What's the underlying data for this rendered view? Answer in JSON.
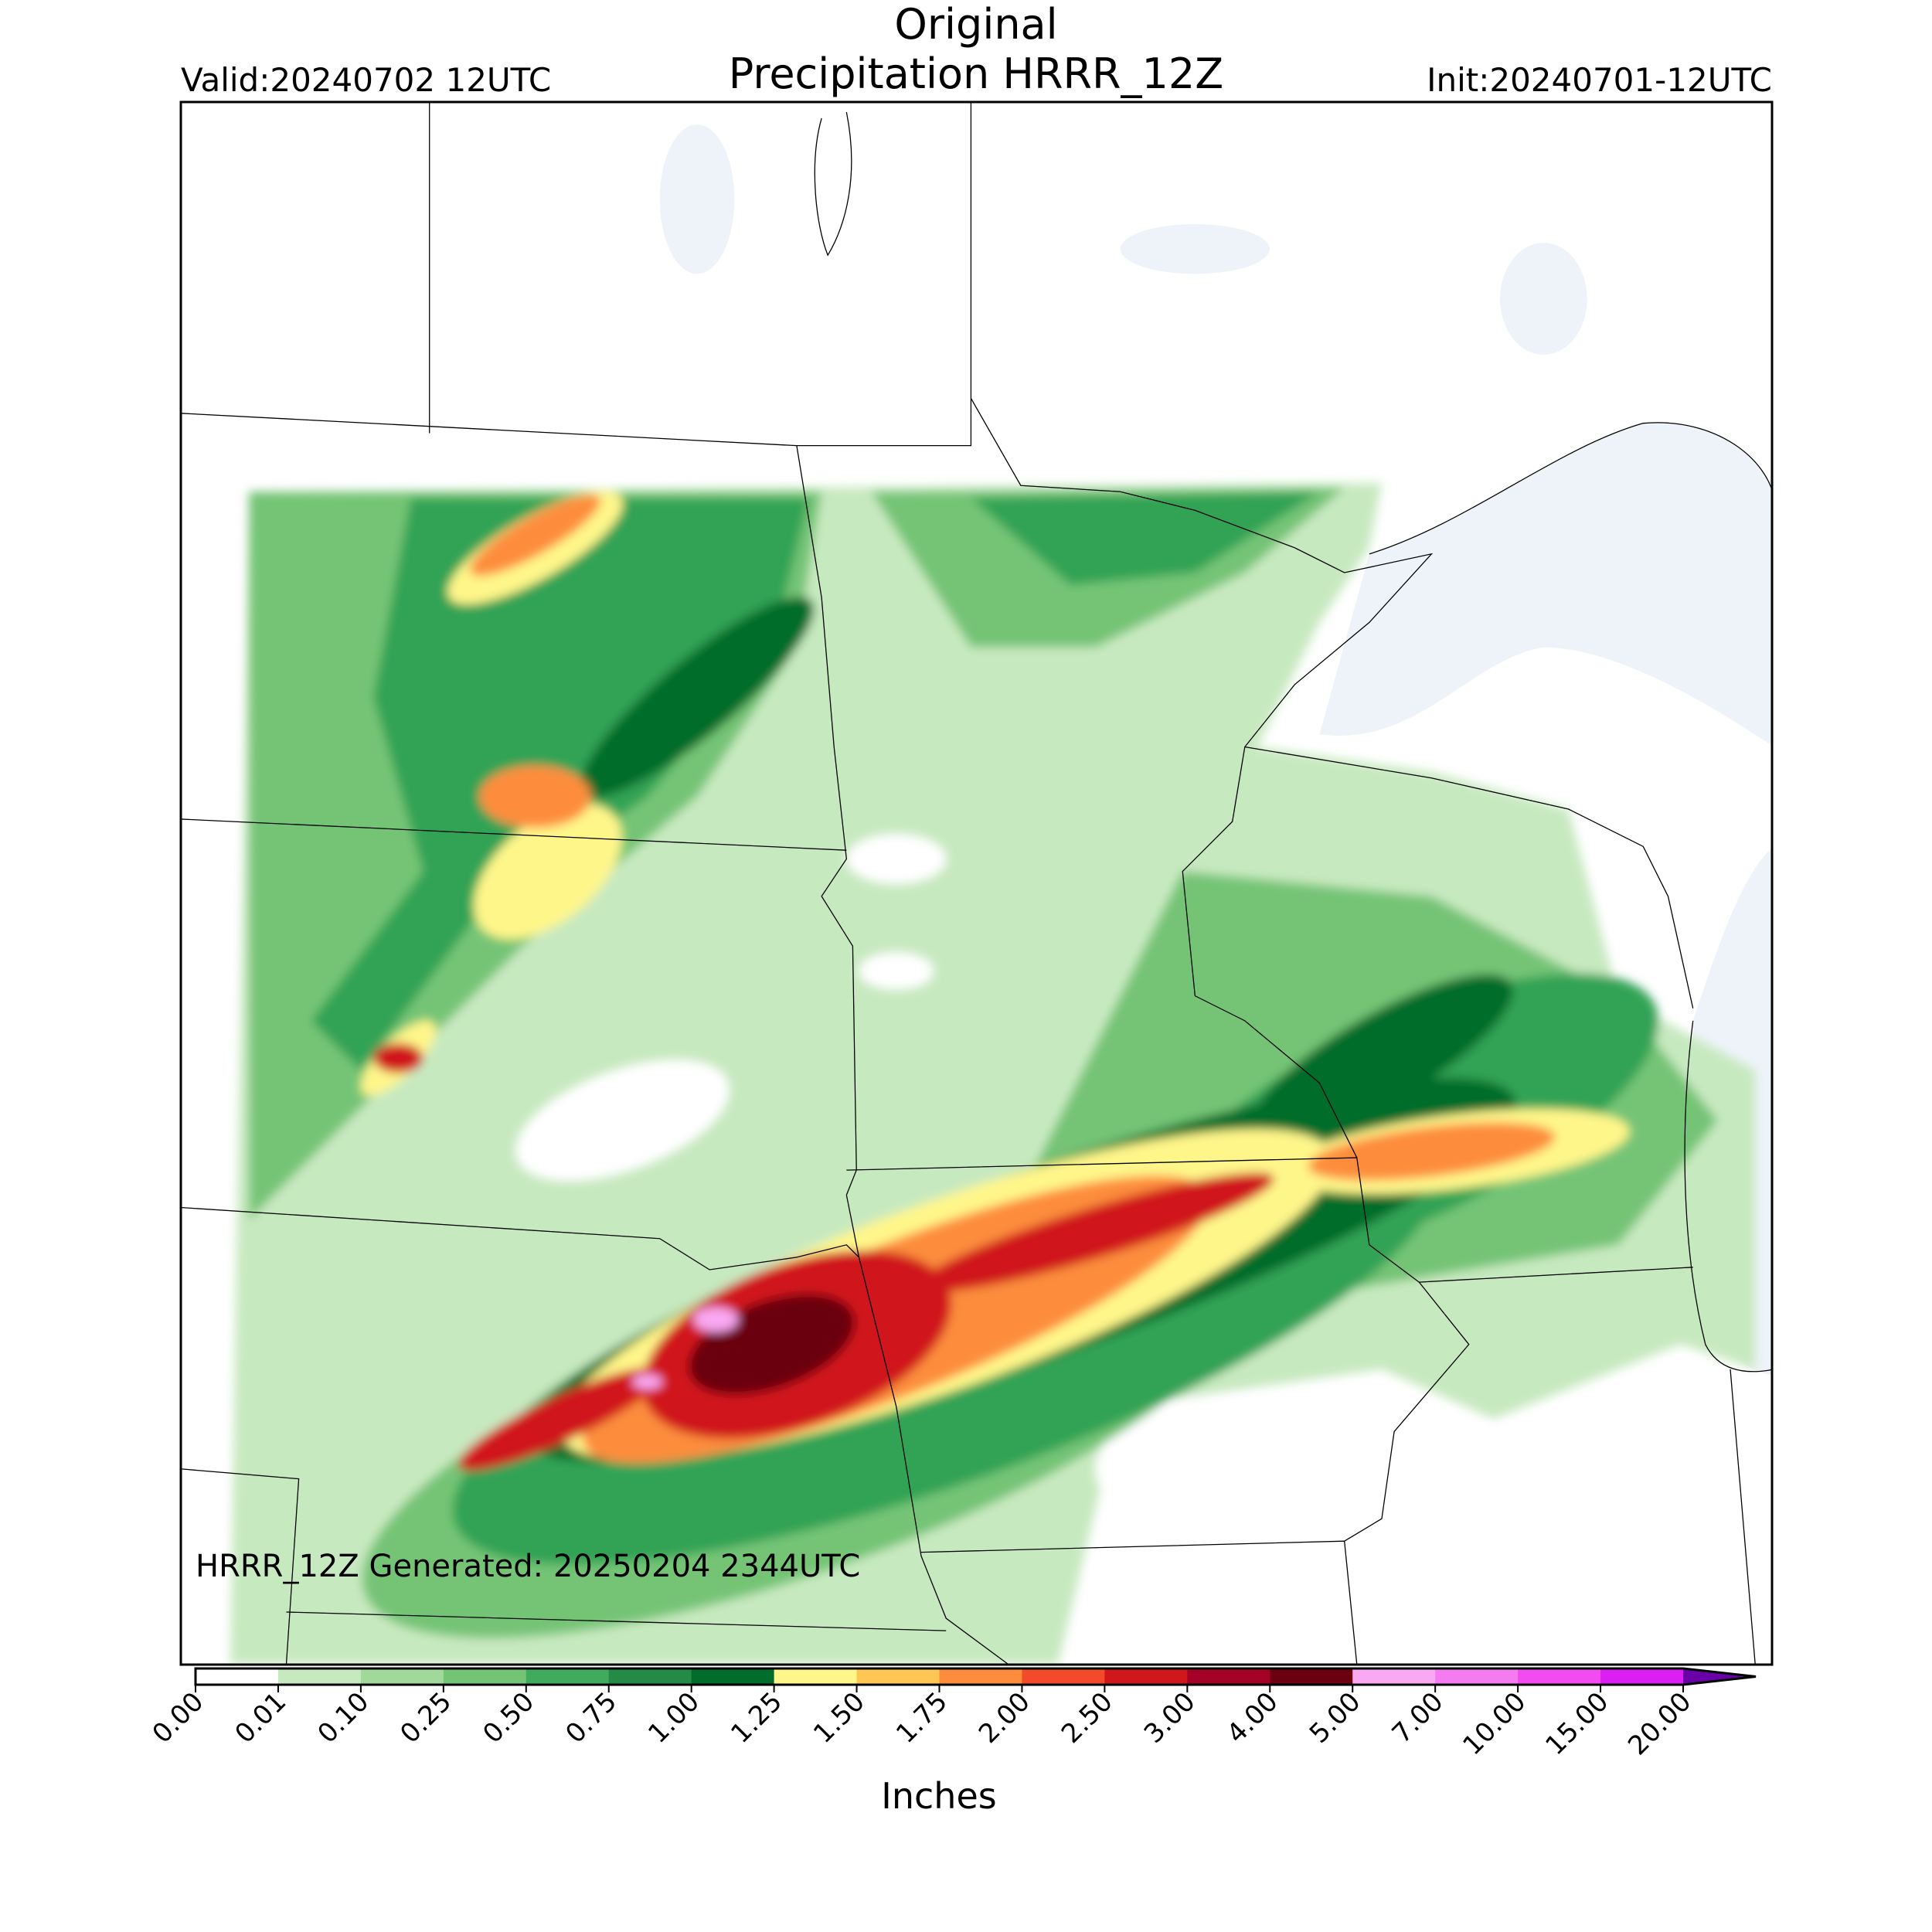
{
  "header": {
    "title_line1": "Original",
    "title_line2": "Precipitation HRRR_12Z",
    "valid": "Valid:20240702 12UTC",
    "init": "Init:20240701-12UTC"
  },
  "note": "HRRR_12Z Generated: 20250204 2344UTC",
  "colorbar": {
    "label": "Inches",
    "ticks": [
      "0.00",
      "0.01",
      "0.10",
      "0.25",
      "0.50",
      "0.75",
      "1.00",
      "1.25",
      "1.50",
      "1.75",
      "2.00",
      "2.50",
      "3.00",
      "4.00",
      "5.00",
      "7.00",
      "10.00",
      "15.00",
      "20.00"
    ],
    "colors": [
      "#ffffff",
      "#c7e9c0",
      "#a1d99b",
      "#74c476",
      "#41ab5d",
      "#238b45",
      "#006d2c",
      "#fff68a",
      "#ffc653",
      "#fd8d3c",
      "#f24a2a",
      "#d0171c",
      "#a50026",
      "#6b0010",
      "#f9a8f2",
      "#f57cf0",
      "#f24bf0",
      "#dd1ef2",
      "#9a0ccf"
    ],
    "extend_color": "#6a00a8"
  }
}
